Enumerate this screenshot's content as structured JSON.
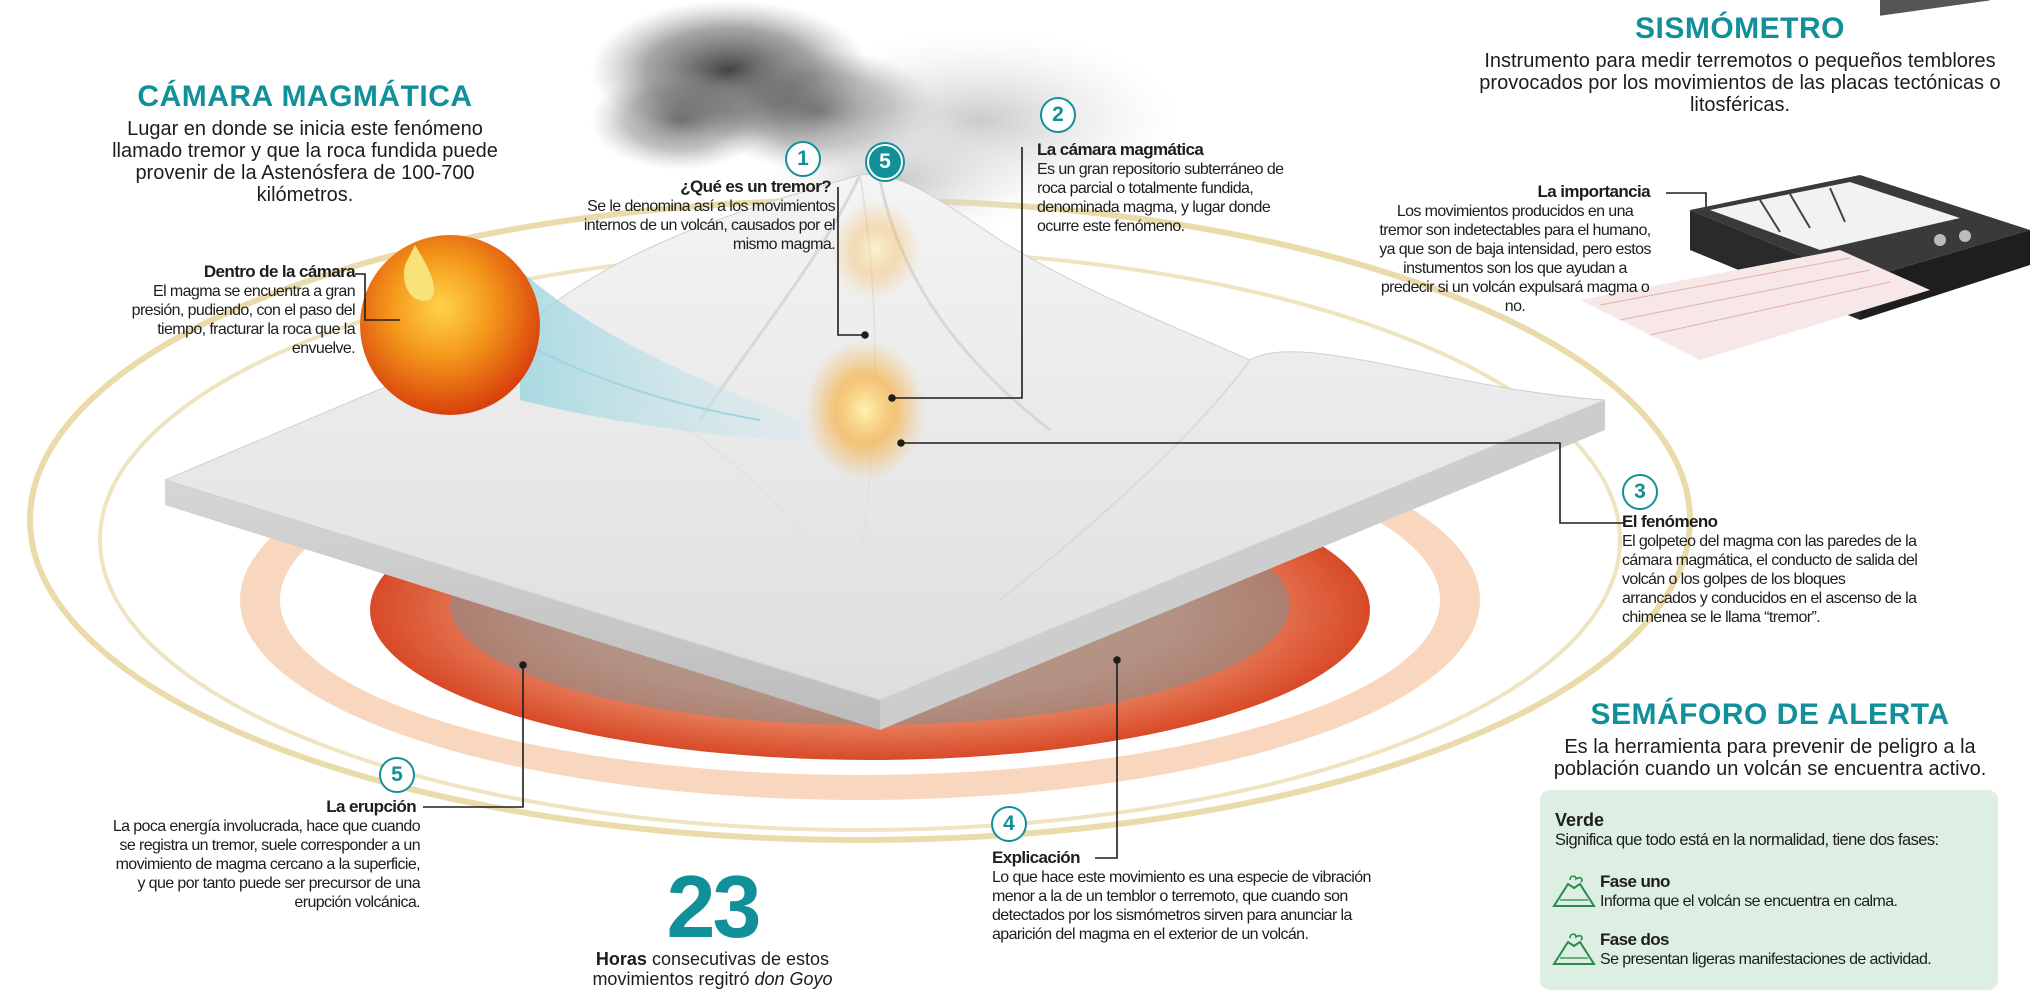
{
  "camara": {
    "title": "CÁMARA MAGMÁTICA",
    "text": "Lugar en donde se inicia este fenómeno llamado tremor y que la roca fundida puede provenir de la Astenósfera de 100-700 kilómetros."
  },
  "dentro": {
    "title": "Dentro de la cámara",
    "text": "El magma se encuentra a gran presión, pudiendo, con el paso del tiempo, fracturar la roca que la envuelve."
  },
  "step1": {
    "number": "1",
    "title": "¿Qué es un tremor?",
    "text": "Se le denomina así a los movimientos internos de un volcán, causados por el mismo magma."
  },
  "step2": {
    "number": "2",
    "title": "La cámara magmática",
    "text": "Es un gran repositorio subterráneo de roca parcial o totalmente fundida, denominada magma, y lugar donde ocurre este fenómeno."
  },
  "step3": {
    "number": "3",
    "title": "El fenómeno",
    "text": "El golpeteo del magma con las paredes de la cámara magmática, el conducto de salida del volcán o los golpes de los bloques arrancados y conducidos en el ascenso de la chimenea se le llama “tremor”."
  },
  "step4": {
    "number": "4",
    "title": "Explicación",
    "text": "Lo que hace este movimiento es una especie de vibración menor a la de un temblor o terremoto, que cuando son detectados por los sismómetros sirven para anunciar la aparición del magma en el exterior de un volcán."
  },
  "step5": {
    "number": "5",
    "title": "La erupción",
    "text": "La poca energía involucrada, hace que cuando se registra un tremor, suele corresponder a un movimiento de magma cercano a la superficie, y que por tanto puede ser precursor de una erupción volcánica."
  },
  "summit_number": "5",
  "stat": {
    "value": "23",
    "bold": "Horas",
    "rest": " consecutivas de estos",
    "line2": "movimientos regitró ",
    "italic": "don Goyo"
  },
  "sismometro": {
    "title": "SISMÓMETRO",
    "text": "Instrumento para medir terremotos o pequeños temblores provocados por los movimientos de las placas tectónicas o litosféricas."
  },
  "importancia": {
    "title": "La importancia",
    "text": "Los movimientos producidos en una tremor son indetectables para el humano, ya que son de baja intensidad, pero estos instumentos son los que ayudan a predecir si un volcán expulsará magma o no."
  },
  "semaforo": {
    "title": "SEMÁFORO DE ALERTA",
    "text": "Es la herramienta para prevenir de peligro a la población cuando un volcán se encuentra activo.",
    "level_title": "Verde",
    "level_text": "Significa que todo está en la normalidad, tiene dos fases:",
    "phases": [
      {
        "title": "Fase uno",
        "text": "Informa que el volcán se encuentra en calma.",
        "icon": "volcano-icon"
      },
      {
        "title": "Fase dos",
        "text": "Se presentan ligeras manifestaciones de actividad.",
        "icon": "volcano-icon"
      }
    ],
    "level_color": "#dcefe2"
  },
  "colors": {
    "accent": "#12909a",
    "text": "#1d1d1b"
  }
}
